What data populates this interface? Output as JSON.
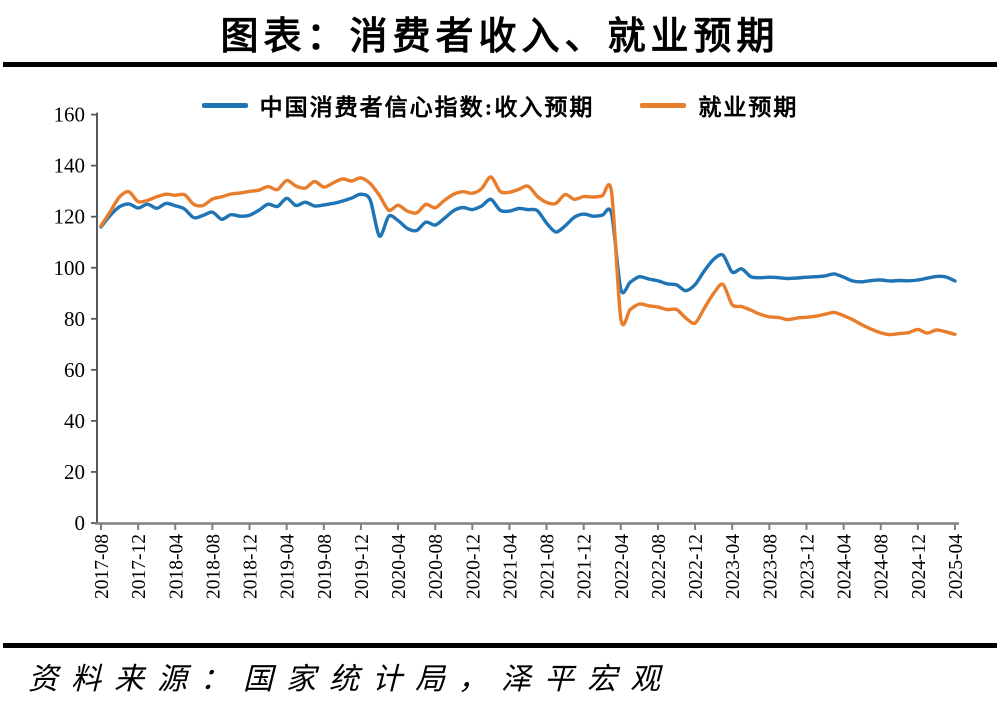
{
  "page": {
    "title": "图表：消费者收入、就业预期",
    "source": "资料来源：国家统计局，泽平宏观"
  },
  "colors": {
    "divider": "#000000",
    "y_axis": "#595959",
    "x_axis": "#808080",
    "tick_label": "#000000"
  },
  "chart_data": {
    "type": "line",
    "title": "图表：消费者收入、就业预期",
    "xlabel": "",
    "ylabel": "",
    "ylim": [
      0,
      160
    ],
    "yticks": [
      0,
      20,
      40,
      60,
      80,
      100,
      120,
      140,
      160
    ],
    "xtick_every": 4,
    "grid": false,
    "legend_position": "top",
    "x": [
      "2017-08",
      "2017-09",
      "2017-10",
      "2017-11",
      "2017-12",
      "2018-01",
      "2018-02",
      "2018-03",
      "2018-04",
      "2018-05",
      "2018-06",
      "2018-07",
      "2018-08",
      "2018-09",
      "2018-10",
      "2018-11",
      "2018-12",
      "2019-01",
      "2019-02",
      "2019-03",
      "2019-04",
      "2019-05",
      "2019-06",
      "2019-07",
      "2019-08",
      "2019-09",
      "2019-10",
      "2019-11",
      "2019-12",
      "2020-01",
      "2020-02",
      "2020-03",
      "2020-04",
      "2020-05",
      "2020-06",
      "2020-07",
      "2020-08",
      "2020-09",
      "2020-10",
      "2020-11",
      "2020-12",
      "2021-01",
      "2021-02",
      "2021-03",
      "2021-04",
      "2021-05",
      "2021-06",
      "2021-07",
      "2021-08",
      "2021-09",
      "2021-10",
      "2021-11",
      "2021-12",
      "2022-01",
      "2022-02",
      "2022-03",
      "2022-04",
      "2022-05",
      "2022-06",
      "2022-07",
      "2022-08",
      "2022-09",
      "2022-10",
      "2022-11",
      "2022-12",
      "2023-01",
      "2023-02",
      "2023-03",
      "2023-04",
      "2023-05",
      "2023-06",
      "2023-07",
      "2023-08",
      "2023-09",
      "2023-10",
      "2023-11",
      "2023-12",
      "2024-01",
      "2024-02",
      "2024-03",
      "2024-04",
      "2024-05",
      "2024-06",
      "2024-07",
      "2024-08",
      "2024-09",
      "2024-10",
      "2024-11",
      "2024-12",
      "2025-01",
      "2025-02",
      "2025-03",
      "2025-04"
    ],
    "series": [
      {
        "name": "中国消费者信心指数:收入预期",
        "color": "#1E74B4",
        "values": [
          116.0,
          120.5,
          123.9,
          125.0,
          123.4,
          124.9,
          123.3,
          125.2,
          124.3,
          123.0,
          119.6,
          120.5,
          121.8,
          119.0,
          120.8,
          120.2,
          120.6,
          122.5,
          124.9,
          124.0,
          127.2,
          124.4,
          125.7,
          124.2,
          124.6,
          125.2,
          126.1,
          127.3,
          128.8,
          126.6,
          112.4,
          120.2,
          118.5,
          115.4,
          114.6,
          117.9,
          116.7,
          119.4,
          122.4,
          123.6,
          122.8,
          124.2,
          126.8,
          122.5,
          122.2,
          123.2,
          122.8,
          122.4,
          117.5,
          114.0,
          116.4,
          119.8,
          121.0,
          120.2,
          120.6,
          121.3,
          91.5,
          94.3,
          96.5,
          95.6,
          94.9,
          93.7,
          93.3,
          91.0,
          93.4,
          98.8,
          103.3,
          105.0,
          98.3,
          99.6,
          96.5,
          96.1,
          96.3,
          96.1,
          95.8,
          96.0,
          96.3,
          96.5,
          96.8,
          97.6,
          96.3,
          94.8,
          94.5,
          95.0,
          95.2,
          94.8,
          95.0,
          94.9,
          95.2,
          95.9,
          96.6,
          96.4,
          94.8
        ]
      },
      {
        "name": "就业预期",
        "color": "#E87D2B",
        "values": [
          116.4,
          122.0,
          127.8,
          129.8,
          125.9,
          126.4,
          127.8,
          128.8,
          128.4,
          128.6,
          124.8,
          124.4,
          126.9,
          127.8,
          128.9,
          129.3,
          129.9,
          130.4,
          131.8,
          130.6,
          134.2,
          132.0,
          131.2,
          133.8,
          131.6,
          133.2,
          134.8,
          134.0,
          135.2,
          133.0,
          128.3,
          122.5,
          124.5,
          122.2,
          121.5,
          124.8,
          123.5,
          126.4,
          128.8,
          129.8,
          129.2,
          131.0,
          135.6,
          129.9,
          129.6,
          130.7,
          132.0,
          128.0,
          125.6,
          125.2,
          128.7,
          126.8,
          127.9,
          127.7,
          128.2,
          129.8,
          80.0,
          83.6,
          85.8,
          85.1,
          84.6,
          83.6,
          83.7,
          80.3,
          78.3,
          84.2,
          90.0,
          93.5,
          85.5,
          84.8,
          83.4,
          81.8,
          80.8,
          80.5,
          79.7,
          80.3,
          80.6,
          81.0,
          81.8,
          82.5,
          81.2,
          79.6,
          77.6,
          75.9,
          74.5,
          73.8,
          74.2,
          74.6,
          75.8,
          74.4,
          75.6,
          74.9,
          73.9
        ]
      }
    ]
  }
}
